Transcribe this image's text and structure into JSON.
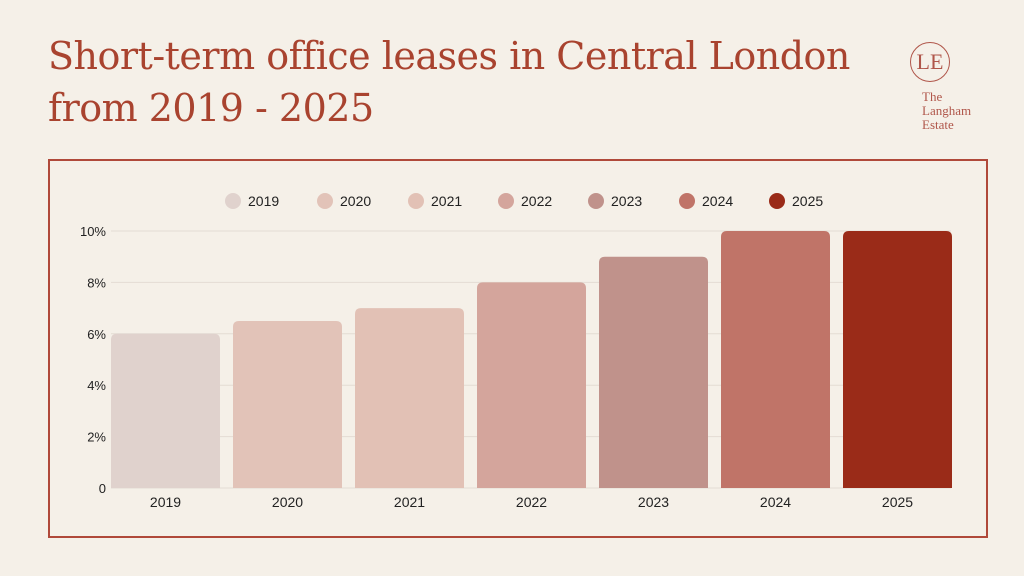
{
  "title": "Short-term office leases in Central London from 2019 - 2025",
  "logo": {
    "monogram": "LE",
    "lines": [
      "The",
      "Langham",
      "Estate"
    ]
  },
  "colors": {
    "background": "#f5f0e8",
    "accent": "#a9432f"
  },
  "chart_data": {
    "type": "bar",
    "title": "",
    "xlabel": "",
    "ylabel": "",
    "categories": [
      "2019",
      "2020",
      "2021",
      "2022",
      "2023",
      "2024",
      "2025"
    ],
    "values": [
      6,
      6.5,
      7,
      8,
      9,
      10,
      10
    ],
    "unit": "%",
    "colors": [
      "#e0d2cd",
      "#e2c3b8",
      "#e2c1b5",
      "#d4a59c",
      "#c0928b",
      "#c07468",
      "#9a2b18"
    ],
    "ylim": [
      0,
      10
    ],
    "yticks": [
      "0",
      "2%",
      "4%",
      "6%",
      "8%",
      "10%"
    ],
    "ytick_values": [
      0,
      2,
      4,
      6,
      8,
      10
    ],
    "legend": [
      "2019",
      "2020",
      "2021",
      "2022",
      "2023",
      "2024",
      "2025"
    ],
    "legend_position": "top",
    "grid": true
  }
}
